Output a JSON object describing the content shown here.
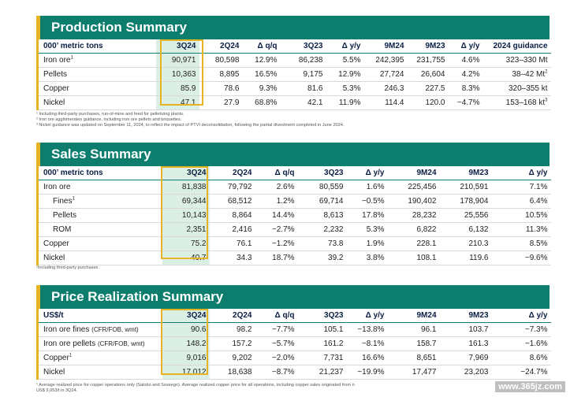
{
  "production": {
    "title": "Production Summary",
    "headers": [
      "000’ metric tons",
      "3Q24",
      "2Q24",
      "Δ q/q",
      "3Q23",
      "Δ y/y",
      "9M24",
      "9M23",
      "Δ y/y",
      "2024 guidance"
    ],
    "rows": [
      {
        "label": "Iron ore",
        "sup": "1",
        "cells": [
          "90,971",
          "80,598",
          "12.9%",
          "86,238",
          "5.5%",
          "242,395",
          "231,755",
          "4.6%",
          "323–330 Mt"
        ]
      },
      {
        "label": "Pellets",
        "sup": "",
        "cells": [
          "10,363",
          "8,895",
          "16.5%",
          "9,175",
          "12.9%",
          "27,724",
          "26,604",
          "4.2%",
          "38–42 Mt"
        ],
        "guide_sup": "2"
      },
      {
        "label": "Copper",
        "sup": "",
        "cells": [
          "85.9",
          "78.6",
          "9.3%",
          "81.6",
          "5.3%",
          "246.3",
          "227.5",
          "8.3%",
          "320–355 kt"
        ]
      },
      {
        "label": "Nickel",
        "sup": "",
        "cells": [
          "47.1",
          "27.9",
          "68.8%",
          "42.1",
          "11.9%",
          "114.4",
          "120.0",
          "−4.7%",
          "153–168 kt"
        ],
        "guide_sup": "3"
      }
    ],
    "footnotes": [
      "¹ Including third-party purchases, run-of-mine and feed for pelletizing plants.",
      "² Iron ore agglomerates guidance, including iron ore pellets and briquettes.",
      "³ Nickel guidance was updated on September 11, 2024, to reflect the impact of PTVI deconsolidation, following the partial divestment completed in June 2024."
    ]
  },
  "sales": {
    "title": "Sales Summary",
    "headers": [
      "000’ metric tons",
      "3Q24",
      "2Q24",
      "Δ q/q",
      "3Q23",
      "Δ y/y",
      "9M24",
      "9M23",
      "Δ y/y"
    ],
    "rows": [
      {
        "label": "Iron ore",
        "sup": "",
        "indent": false,
        "cells": [
          "81,838",
          "79,792",
          "2.6%",
          "80,559",
          "1.6%",
          "225,456",
          "210,591",
          "7.1%"
        ]
      },
      {
        "label": "Fines",
        "sup": "1",
        "indent": true,
        "cells": [
          "69,344",
          "68,512",
          "1.2%",
          "69,714",
          "−0.5%",
          "190,402",
          "178,904",
          "6.4%"
        ]
      },
      {
        "label": "Pellets",
        "sup": "",
        "indent": true,
        "cells": [
          "10,143",
          "8,864",
          "14.4%",
          "8,613",
          "17.8%",
          "28,232",
          "25,556",
          "10.5%"
        ]
      },
      {
        "label": "ROM",
        "sup": "",
        "indent": true,
        "cells": [
          "2,351",
          "2,416",
          "−2.7%",
          "2,232",
          "5.3%",
          "6,822",
          "6,132",
          "11.3%"
        ]
      },
      {
        "label": "Copper",
        "sup": "",
        "indent": false,
        "cells": [
          "75.2",
          "76.1",
          "−1.2%",
          "73.8",
          "1.9%",
          "228.1",
          "210.3",
          "8.5%"
        ]
      },
      {
        "label": "Nickel",
        "sup": "",
        "indent": false,
        "cells": [
          "40.7",
          "34.3",
          "18.7%",
          "39.2",
          "3.8%",
          "108.1",
          "119.6",
          "−9.6%"
        ]
      }
    ],
    "footnote": "¹Including third-party purchases."
  },
  "price": {
    "title": "Price Realization Summary",
    "headers": [
      "US$/t",
      "3Q24",
      "2Q24",
      "Δ q/q",
      "3Q23",
      "Δ y/y",
      "9M24",
      "9M23",
      "Δ y/y"
    ],
    "rows": [
      {
        "label": "Iron ore fines",
        "note": "(CFR/FOB, wmt)",
        "sup": "",
        "cells": [
          "90.6",
          "98.2",
          "−7.7%",
          "105.1",
          "−13.8%",
          "96.1",
          "103.7",
          "−7.3%"
        ]
      },
      {
        "label": "Iron ore pellets",
        "note": "(CFR/FOB, wmt)",
        "sup": "",
        "cells": [
          "148.2",
          "157.2",
          "−5.7%",
          "161.2",
          "−8.1%",
          "158.7",
          "161.3",
          "−1.6%"
        ]
      },
      {
        "label": "Copper",
        "note": "",
        "sup": "1",
        "cells": [
          "9,016",
          "9,202",
          "−2.0%",
          "7,731",
          "16.6%",
          "8,651",
          "7,969",
          "8.6%"
        ]
      },
      {
        "label": "Nickel",
        "note": "",
        "sup": "",
        "cells": [
          "17,012",
          "18,638",
          "−8.7%",
          "21,237",
          "−19.9%",
          "17,477",
          "23,203",
          "−24.7%"
        ]
      }
    ],
    "footnote": "¹ Average realized price for copper operations only (Salobo and Sossego). Average realized copper price for all operations, including copper sales originated from n",
    "footnote2": "US$ 9,053/t in 3Q24."
  },
  "watermark": "www.365jz.com"
}
